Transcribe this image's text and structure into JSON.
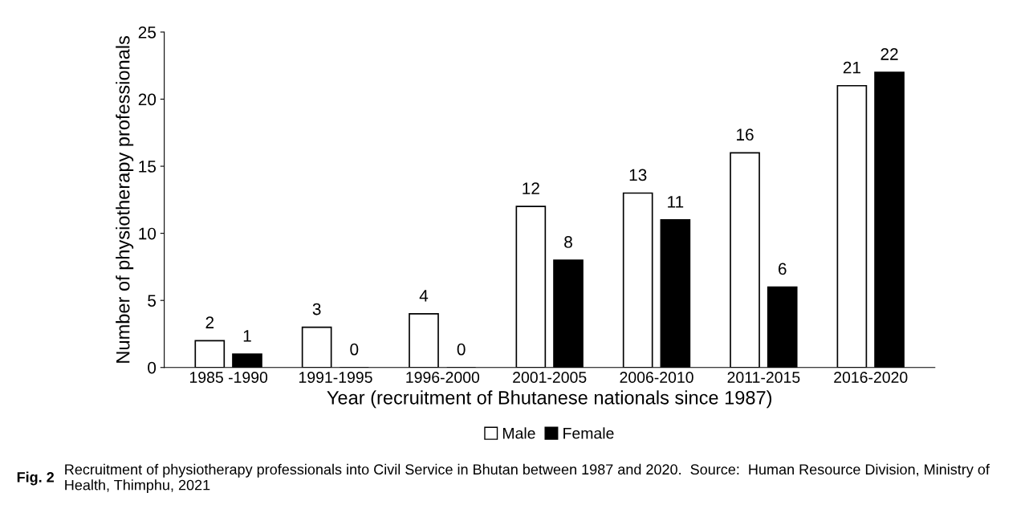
{
  "chart_data": {
    "type": "bar",
    "xlabel": "Year (recruitment of Bhutanese nationals since 1987)",
    "ylabel": "Number of physiotherapy professionals",
    "categories": [
      "1985 -1990",
      "1991-1995",
      "1996-2000",
      "2001-2005",
      "2006-2010",
      "2011-2015",
      "2016-2020"
    ],
    "series": [
      {
        "name": "Male",
        "color": "#ffffff",
        "values": [
          2,
          3,
          4,
          12,
          13,
          16,
          21
        ]
      },
      {
        "name": "Female",
        "color": "#000000",
        "values": [
          1,
          0,
          0,
          8,
          11,
          6,
          22
        ]
      }
    ],
    "ylim": [
      0,
      25
    ],
    "yticks": [
      0,
      5,
      10,
      15,
      20,
      25
    ],
    "data_labels": true,
    "grid": false,
    "legend": "bottom",
    "annotations": [
      "Fig. 2",
      "Recruitment of physiotherapy professionals into Civil Service in Bhutan between 1987 and 2020.  Source:  Human Resource Division, Ministry of Health, Thimphu, 2021"
    ]
  }
}
